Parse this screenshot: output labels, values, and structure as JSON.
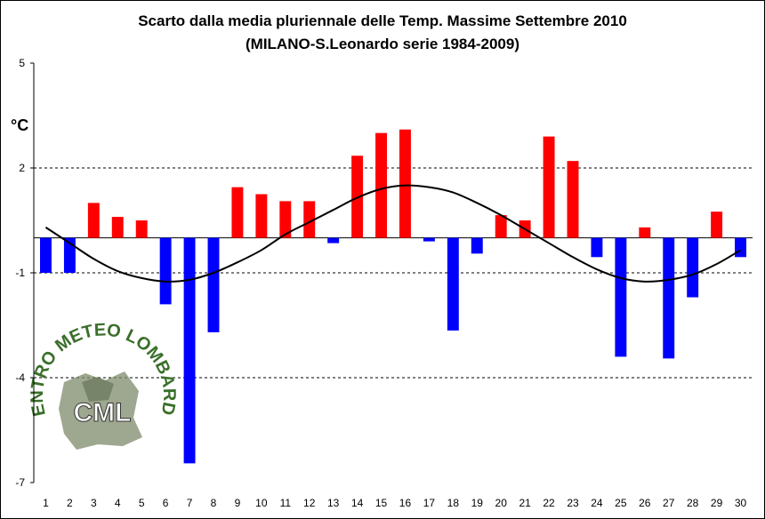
{
  "chart_data": {
    "type": "bar",
    "title": "Scarto dalla media pluriennale delle Temp. Massime Settembre 2010",
    "subtitle": "(MILANO-S.Leonardo serie 1984-2009)",
    "ylabel": "°C",
    "xlabel": "",
    "ylim": [
      -7,
      5
    ],
    "yticks": [
      5,
      2,
      -1,
      -4,
      -7
    ],
    "grid": "dashed horizontal at 2, -1, -4",
    "categories": [
      "1",
      "2",
      "3",
      "4",
      "5",
      "6",
      "7",
      "8",
      "9",
      "10",
      "11",
      "12",
      "13",
      "14",
      "15",
      "16",
      "17",
      "18",
      "19",
      "20",
      "21",
      "22",
      "23",
      "24",
      "25",
      "26",
      "27",
      "28",
      "29",
      "30"
    ],
    "values": [
      -1.0,
      -1.0,
      1.0,
      0.6,
      0.5,
      -1.9,
      -6.45,
      -2.7,
      1.45,
      1.25,
      1.05,
      1.05,
      -0.15,
      2.35,
      3.0,
      3.1,
      -0.1,
      -2.65,
      -0.45,
      0.65,
      0.5,
      2.9,
      2.2,
      -0.55,
      -3.4,
      0.3,
      -3.45,
      -1.7,
      0.75,
      -0.55
    ],
    "positive_color": "#ff0000",
    "negative_color": "#0000ff",
    "trend_line": {
      "x": [
        1,
        2,
        3,
        4,
        5,
        6,
        7,
        8,
        9,
        10,
        11,
        12,
        13,
        14,
        15,
        16,
        17,
        18,
        19,
        20,
        21,
        22,
        23,
        24,
        25,
        26,
        27,
        28,
        29,
        30
      ],
      "values": [
        0.3,
        -0.15,
        -0.6,
        -0.95,
        -1.15,
        -1.25,
        -1.2,
        -1.0,
        -0.7,
        -0.35,
        0.1,
        0.45,
        0.8,
        1.15,
        1.4,
        1.5,
        1.45,
        1.3,
        1.0,
        0.65,
        0.25,
        -0.15,
        -0.55,
        -0.9,
        -1.15,
        -1.25,
        -1.2,
        -1.05,
        -0.75,
        -0.35
      ],
      "color": "#000000"
    }
  },
  "logo": {
    "ring_text": "CENTRO METEO LOMBARDO",
    "center_text": "CML"
  }
}
